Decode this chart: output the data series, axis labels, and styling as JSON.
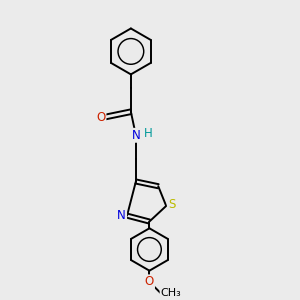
{
  "background_color": "#ebebeb",
  "bond_color": "#000000",
  "atom_colors": {
    "O": "#cc2200",
    "N": "#0000dd",
    "S": "#bbbb00",
    "H": "#009999",
    "C": "#000000"
  },
  "bond_width": 1.4,
  "font_size": 8.5,
  "fig_width": 3.0,
  "fig_height": 3.0,
  "dpi": 100
}
